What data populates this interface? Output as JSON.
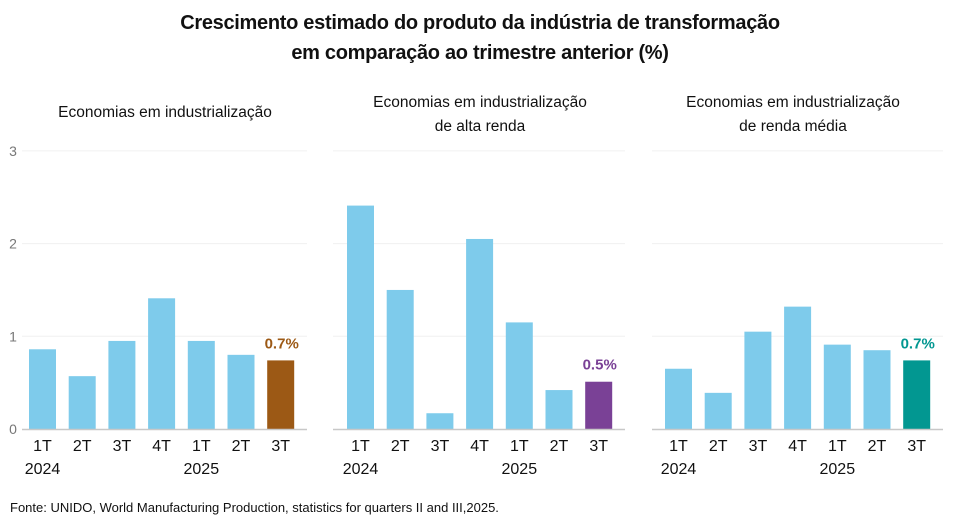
{
  "title_line1": "Crescimento estimado do produto da indústria de transformação",
  "title_line2": "em comparação ao trimestre anterior (%)",
  "source": "Fonte: UNIDO, World Manufacturing Production, statistics for quarters II and III,2025.",
  "colors": {
    "bar_default": "#7ecbeb",
    "gridline": "#f0f0f0",
    "axis": "#c8c8c8"
  },
  "chart_data": [
    {
      "type": "bar",
      "title": "Economias em industrialização",
      "title_lines": [
        "Economias em industrialização"
      ],
      "categories": [
        "1T",
        "2T",
        "3T",
        "4T",
        "1T",
        "2T",
        "3T"
      ],
      "year_labels": [
        {
          "label": "2024",
          "index": 0
        },
        {
          "label": "2025",
          "index": 4
        }
      ],
      "values": [
        0.86,
        0.57,
        0.95,
        1.41,
        0.95,
        0.8,
        0.74
      ],
      "highlight_index": 6,
      "highlight_color": "#9c5915",
      "highlight_label": "0.7%",
      "xlabel": "",
      "ylabel": "",
      "ylim": [
        0,
        3
      ],
      "yticks": [
        0,
        1,
        2,
        3
      ],
      "show_ytick_labels": true,
      "grid": true
    },
    {
      "type": "bar",
      "title": "Economias em industrialização de alta renda",
      "title_lines": [
        "Economias em industrialização",
        "de alta renda"
      ],
      "categories": [
        "1T",
        "2T",
        "3T",
        "4T",
        "1T",
        "2T",
        "3T"
      ],
      "year_labels": [
        {
          "label": "2024",
          "index": 0
        },
        {
          "label": "2025",
          "index": 4
        }
      ],
      "values": [
        2.41,
        1.5,
        0.17,
        2.05,
        1.15,
        0.42,
        0.51
      ],
      "highlight_index": 6,
      "highlight_color": "#7a4196",
      "highlight_label": "0.5%",
      "xlabel": "",
      "ylabel": "",
      "ylim": [
        0,
        3
      ],
      "yticks": [
        0,
        1,
        2,
        3
      ],
      "show_ytick_labels": false,
      "grid": true
    },
    {
      "type": "bar",
      "title": "Economias em industrialização de renda média",
      "title_lines": [
        "Economias em industrialização",
        "de renda média"
      ],
      "categories": [
        "1T",
        "2T",
        "3T",
        "4T",
        "1T",
        "2T",
        "3T"
      ],
      "year_labels": [
        {
          "label": "2024",
          "index": 0
        },
        {
          "label": "2025",
          "index": 4
        }
      ],
      "values": [
        0.65,
        0.39,
        1.05,
        1.32,
        0.91,
        0.85,
        0.74
      ],
      "highlight_index": 6,
      "highlight_color": "#029791",
      "highlight_label": "0.7%",
      "xlabel": "",
      "ylabel": "",
      "ylim": [
        0,
        3
      ],
      "yticks": [
        0,
        1,
        2,
        3
      ],
      "show_ytick_labels": false,
      "grid": true
    }
  ]
}
